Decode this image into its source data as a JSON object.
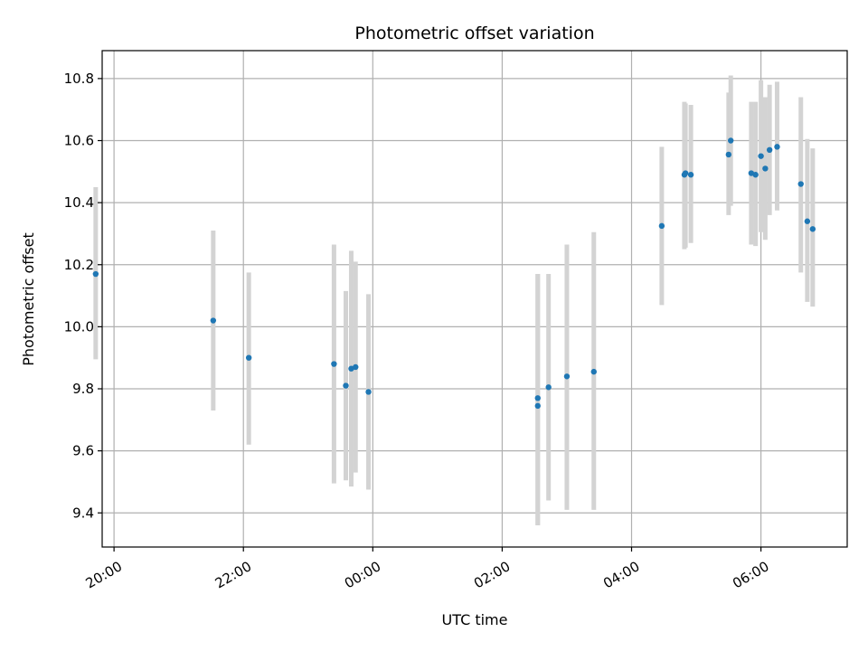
{
  "chart_data": {
    "type": "scatter",
    "title": "Photometric offset variation",
    "xlabel": "UTC time",
    "ylabel": "Photometric offset",
    "grid": true,
    "x_axis": {
      "unit": "UTC time",
      "range": [
        "19:49",
        "07:20"
      ],
      "ticks": [
        {
          "t": "20:00",
          "label": "20:00"
        },
        {
          "t": "22:00",
          "label": "22:00"
        },
        {
          "t": "24:00",
          "label": "00:00"
        },
        {
          "t": "26:00",
          "label": "02:00"
        },
        {
          "t": "28:00",
          "label": "04:00"
        },
        {
          "t": "30:00",
          "label": "06:00"
        }
      ]
    },
    "y_axis": {
      "range": [
        9.29,
        10.89
      ],
      "ticks": [
        9.4,
        9.6,
        9.8,
        10.0,
        10.2,
        10.4,
        10.6,
        10.8
      ]
    },
    "colors": {
      "point": "#1f77b4",
      "errorbar": "#d3d3d3",
      "grid": "#b0b0b0"
    },
    "points": [
      {
        "t": "19:43",
        "y": 10.17,
        "lo": 9.895,
        "hi": 10.45
      },
      {
        "t": "21:32",
        "y": 10.02,
        "lo": 9.73,
        "hi": 10.31
      },
      {
        "t": "22:05",
        "y": 9.9,
        "lo": 9.62,
        "hi": 10.175
      },
      {
        "t": "23:24",
        "y": 9.88,
        "lo": 9.495,
        "hi": 10.265
      },
      {
        "t": "23:35",
        "y": 9.81,
        "lo": 9.505,
        "hi": 10.115
      },
      {
        "t": "23:40",
        "y": 9.865,
        "lo": 9.485,
        "hi": 10.245
      },
      {
        "t": "23:44",
        "y": 9.87,
        "lo": 9.53,
        "hi": 10.21
      },
      {
        "t": "23:56",
        "y": 9.79,
        "lo": 9.475,
        "hi": 10.105
      },
      {
        "t": "02:33",
        "y": 9.77,
        "lo": 9.36,
        "hi": 10.17
      },
      {
        "t": "02:33",
        "y": 9.745,
        "lo": 9.36,
        "hi": 10.17
      },
      {
        "t": "02:43",
        "y": 9.805,
        "lo": 9.44,
        "hi": 10.17
      },
      {
        "t": "03:00",
        "y": 9.84,
        "lo": 9.41,
        "hi": 10.265
      },
      {
        "t": "03:25",
        "y": 9.855,
        "lo": 9.41,
        "hi": 10.305
      },
      {
        "t": "04:28",
        "y": 10.325,
        "lo": 10.07,
        "hi": 10.58
      },
      {
        "t": "04:49",
        "y": 10.49,
        "lo": 10.25,
        "hi": 10.725
      },
      {
        "t": "04:50",
        "y": 10.495,
        "lo": 10.255,
        "hi": 10.72
      },
      {
        "t": "04:55",
        "y": 10.49,
        "lo": 10.27,
        "hi": 10.715
      },
      {
        "t": "05:30",
        "y": 10.555,
        "lo": 10.36,
        "hi": 10.755
      },
      {
        "t": "05:32",
        "y": 10.6,
        "lo": 10.39,
        "hi": 10.81
      },
      {
        "t": "05:51",
        "y": 10.495,
        "lo": 10.265,
        "hi": 10.725
      },
      {
        "t": "05:55",
        "y": 10.49,
        "lo": 10.26,
        "hi": 10.725
      },
      {
        "t": "06:00",
        "y": 10.55,
        "lo": 10.305,
        "hi": 10.795
      },
      {
        "t": "06:04",
        "y": 10.51,
        "lo": 10.28,
        "hi": 10.74
      },
      {
        "t": "06:08",
        "y": 10.57,
        "lo": 10.36,
        "hi": 10.78
      },
      {
        "t": "06:15",
        "y": 10.58,
        "lo": 10.375,
        "hi": 10.79
      },
      {
        "t": "06:37",
        "y": 10.46,
        "lo": 10.175,
        "hi": 10.74
      },
      {
        "t": "06:43",
        "y": 10.34,
        "lo": 10.08,
        "hi": 10.605
      },
      {
        "t": "06:48",
        "y": 10.315,
        "lo": 10.065,
        "hi": 10.575
      }
    ]
  }
}
